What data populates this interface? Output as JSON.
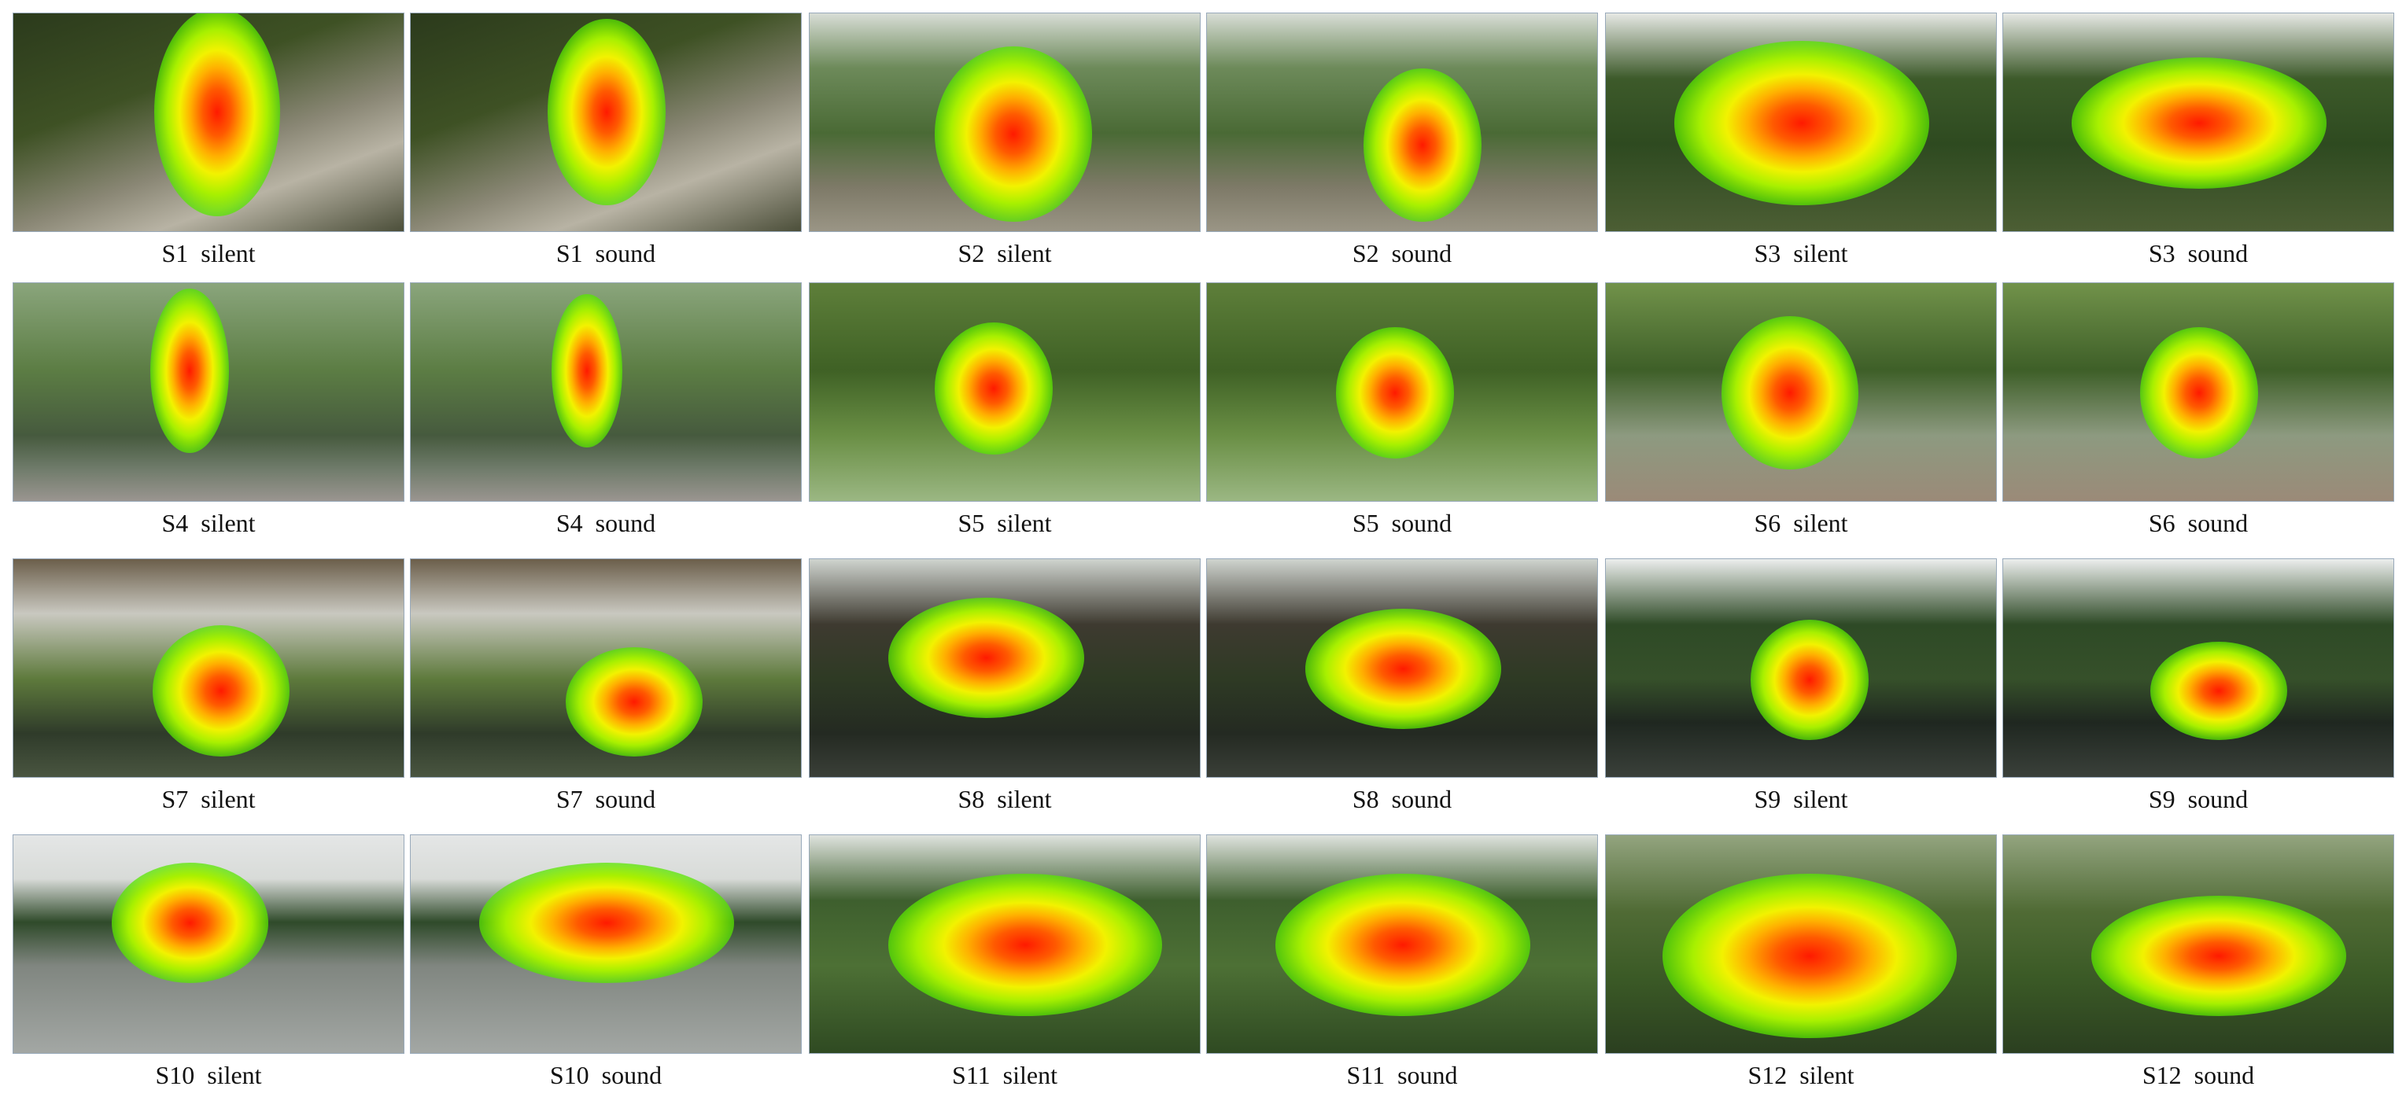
{
  "panels": [
    {
      "label": "S1 silent"
    },
    {
      "label": "S1 sound"
    },
    {
      "label": "S2 silent"
    },
    {
      "label": "S2 sound"
    },
    {
      "label": "S3 silent"
    },
    {
      "label": "S3 sound"
    },
    {
      "label": "S4 silent"
    },
    {
      "label": "S4 sound"
    },
    {
      "label": "S5 silent"
    },
    {
      "label": "S5 sound"
    },
    {
      "label": "S6 silent"
    },
    {
      "label": "S6 sound"
    },
    {
      "label": "S7 silent"
    },
    {
      "label": "S7 sound"
    },
    {
      "label": "S8 silent"
    },
    {
      "label": "S8 sound"
    },
    {
      "label": "S9 silent"
    },
    {
      "label": "S9 sound"
    },
    {
      "label": "S10 silent"
    },
    {
      "label": "S10 sound"
    },
    {
      "label": "S11 silent"
    },
    {
      "label": "S11 sound"
    },
    {
      "label": "S12 silent"
    },
    {
      "label": "S12 sound"
    }
  ]
}
